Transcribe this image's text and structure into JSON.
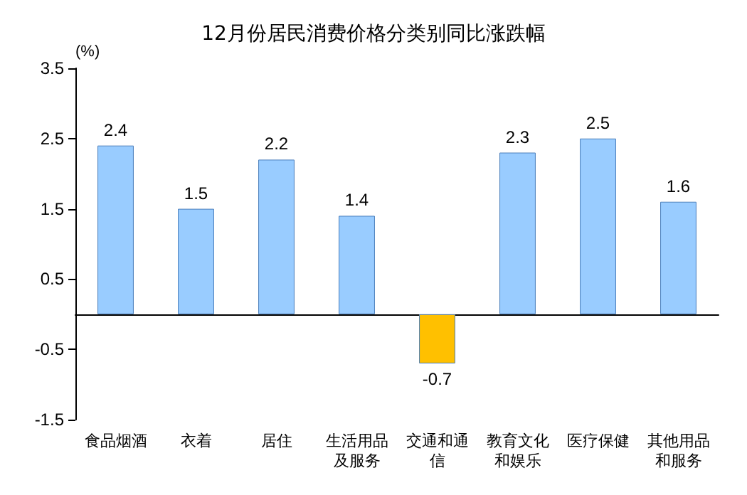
{
  "chart_data": {
    "type": "bar",
    "title": "12月份居民消费价格分类别同比涨跌幅",
    "ylabel": "(%)",
    "categories": [
      "食品烟酒",
      "衣着",
      "居住",
      "生活用品及服务",
      "交通和通信",
      "教育文化和娱乐",
      "医疗保健",
      "其他用品和服务"
    ],
    "values": [
      2.4,
      1.5,
      2.2,
      1.4,
      -0.7,
      2.3,
      2.5,
      1.6
    ],
    "colors": [
      "#99ccff",
      "#99ccff",
      "#99ccff",
      "#99ccff",
      "#ffc000",
      "#99ccff",
      "#99ccff",
      "#99ccff"
    ],
    "ylim": [
      -1.5,
      3.5
    ],
    "yticks": [
      -1.5,
      -0.5,
      0.5,
      1.5,
      2.5,
      3.5
    ],
    "grid": false,
    "data_labels": true
  }
}
